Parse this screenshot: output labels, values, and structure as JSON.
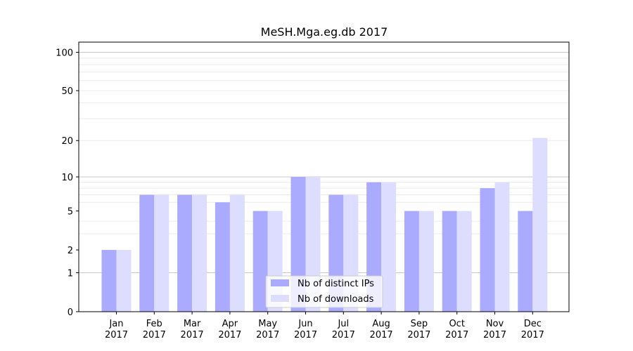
{
  "chart_data": {
    "type": "bar",
    "title": "MeSH.Mga.eg.db 2017",
    "xlabel": "",
    "ylabel": "",
    "y_scale": "log1p",
    "ylim": [
      0,
      120
    ],
    "y_ticks": [
      0,
      1,
      2,
      5,
      10,
      20,
      50,
      100
    ],
    "y_tick_labels": [
      "0",
      "1",
      "2",
      "5",
      "10",
      "20",
      "50",
      "100"
    ],
    "grid": "horizontal",
    "legend_position": "bottom-center",
    "categories": [
      {
        "month": "Jan",
        "year": "2017"
      },
      {
        "month": "Feb",
        "year": "2017"
      },
      {
        "month": "Mar",
        "year": "2017"
      },
      {
        "month": "Apr",
        "year": "2017"
      },
      {
        "month": "May",
        "year": "2017"
      },
      {
        "month": "Jun",
        "year": "2017"
      },
      {
        "month": "Jul",
        "year": "2017"
      },
      {
        "month": "Aug",
        "year": "2017"
      },
      {
        "month": "Sep",
        "year": "2017"
      },
      {
        "month": "Oct",
        "year": "2017"
      },
      {
        "month": "Nov",
        "year": "2017"
      },
      {
        "month": "Dec",
        "year": "2017"
      }
    ],
    "series": [
      {
        "name": "Nb of distinct IPs",
        "color": "#aaaaff",
        "values": [
          2,
          7,
          7,
          6,
          5,
          10,
          7,
          9,
          5,
          5,
          8,
          5
        ]
      },
      {
        "name": "Nb of downloads",
        "color": "#ddddff",
        "values": [
          2,
          7,
          7,
          7,
          5,
          10,
          7,
          9,
          5,
          5,
          9,
          21
        ]
      }
    ]
  }
}
